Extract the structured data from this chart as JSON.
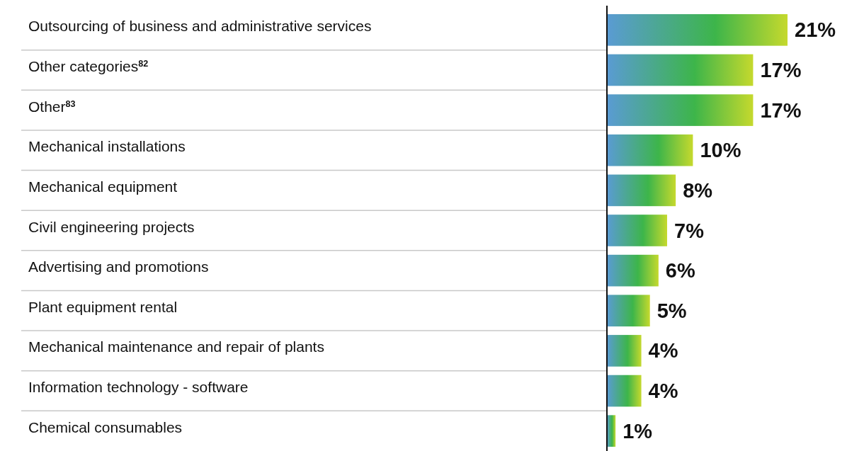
{
  "chart_data": {
    "type": "bar",
    "orientation": "horizontal",
    "categories": [
      "Outsourcing of business and administrative services",
      "Other categories$^{82}$",
      "Other$^{83}$",
      "Mechanical installations",
      "Mechanical equipment",
      "Civil engineering projects",
      "Advertising and promotions",
      "Plant equipment rental",
      "Mechanical maintenance and repair of plants",
      "Information technology - software",
      "Chemical consumables"
    ],
    "series": [
      {
        "color": "#3db54a",
        "values": [
          21,
          17,
          17,
          10,
          8,
          7,
          6,
          5,
          4,
          4,
          1
        ],
        "value_labels": [
          "21%",
          "17%",
          "17%",
          "10%",
          "8%",
          "7%",
          "6%",
          "5%",
          "4%",
          "4%",
          "1%"
        ]
      }
    ]
  }
}
